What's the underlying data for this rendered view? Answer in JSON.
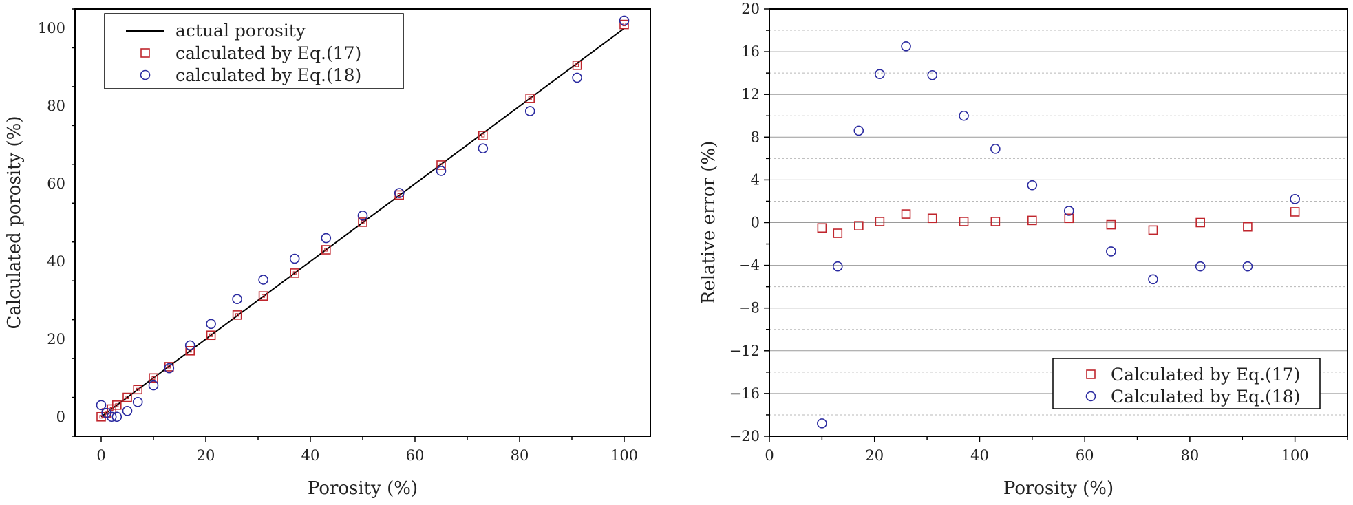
{
  "chart_data": [
    {
      "type": "scatter",
      "xlabel": "Porosity (%)",
      "ylabel": "Calculated porosity (%)",
      "xlim": [
        -5,
        105
      ],
      "ylim": [
        -5,
        105
      ],
      "xticks": [
        0,
        20,
        40,
        60,
        80,
        100
      ],
      "yticks": [
        0,
        20,
        40,
        60,
        80,
        100
      ],
      "legend_position": "top-left",
      "line": {
        "name": "actual porosity",
        "x": [
          0,
          100
        ],
        "y": [
          0,
          100
        ],
        "color": "#000000"
      },
      "series": [
        {
          "name": "calculated by Eq.(17)",
          "marker": "square",
          "color": "#c0262d",
          "x": [
            0,
            1,
            2,
            3,
            5,
            7,
            10,
            13,
            17,
            21,
            26,
            31,
            37,
            43,
            50,
            57,
            65,
            73,
            82,
            91,
            100
          ],
          "y": [
            0,
            1,
            2,
            3,
            5,
            7,
            10,
            12.9,
            17,
            21,
            26.2,
            31.1,
            37,
            43,
            50.1,
            57.1,
            64.8,
            72.4,
            82,
            90.5,
            101
          ]
        },
        {
          "name": "calculated by Eq.(18)",
          "marker": "circle",
          "color": "#2a2aa0",
          "x": [
            0,
            1,
            2,
            3,
            5,
            7,
            10,
            13,
            17,
            21,
            26,
            31,
            37,
            43,
            50,
            57,
            65,
            73,
            82,
            91,
            100
          ],
          "y": [
            3,
            1,
            0,
            0,
            1.5,
            3.8,
            8.1,
            12.5,
            18.4,
            23.9,
            30.3,
            35.3,
            40.7,
            46,
            51.8,
            57.6,
            63.3,
            69.1,
            78.7,
            87.3,
            102
          ]
        }
      ]
    },
    {
      "type": "scatter",
      "xlabel": "Porosity (%)",
      "ylabel": "Relative error (%)",
      "xlim": [
        0,
        110
      ],
      "ylim": [
        -20,
        20
      ],
      "xticks": [
        0,
        20,
        40,
        60,
        80,
        100
      ],
      "yticks": [
        -20,
        -16,
        -12,
        -8,
        -4,
        0,
        4,
        8,
        12,
        16,
        20
      ],
      "grid": true,
      "legend_position": "bottom-right",
      "series": [
        {
          "name": "Calculated by Eq.(17)",
          "marker": "square",
          "color": "#c0262d",
          "x": [
            10,
            13,
            17,
            21,
            26,
            31,
            37,
            43,
            50,
            57,
            65,
            73,
            82,
            91,
            100
          ],
          "y": [
            -0.5,
            -1,
            -0.3,
            0.1,
            0.8,
            0.4,
            0.1,
            0.1,
            0.2,
            0.4,
            -0.2,
            -0.7,
            0,
            -0.4,
            1
          ]
        },
        {
          "name": "Calculated by Eq.(18)",
          "marker": "circle",
          "color": "#2a2aa0",
          "x": [
            10,
            13,
            17,
            21,
            26,
            31,
            37,
            43,
            50,
            57,
            65,
            73,
            82,
            91,
            100
          ],
          "y": [
            -18.8,
            -4.1,
            8.6,
            13.9,
            16.5,
            13.8,
            10,
            6.9,
            3.5,
            1.1,
            -2.7,
            -5.3,
            -4.1,
            -4.1,
            2.2
          ]
        }
      ]
    }
  ]
}
